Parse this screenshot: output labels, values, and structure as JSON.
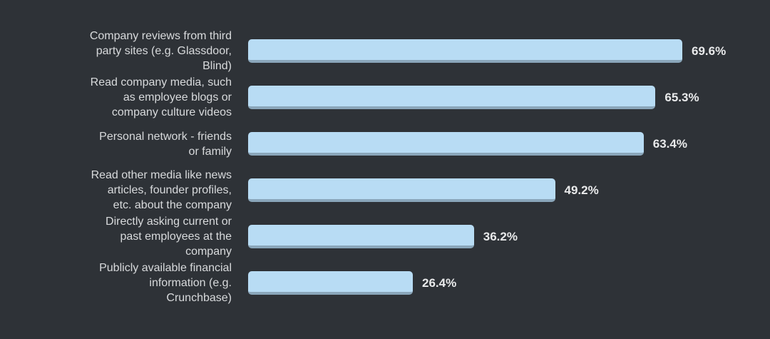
{
  "theme": {
    "background": "#2e3237",
    "bar_color": "#b8dcf4",
    "bar_edge_color": "#8aa6ba",
    "label_color": "#d8dadc",
    "value_color": "#e9eaeb"
  },
  "chart_data": {
    "type": "bar",
    "orientation": "horizontal",
    "title": "",
    "xlabel": "",
    "ylabel": "",
    "xlim": [
      0,
      80
    ],
    "grid": false,
    "legend": false,
    "categories": [
      "Company reviews from third\nparty sites (e.g. Glassdoor,\nBlind)",
      "Read company media, such\nas employee blogs or\ncompany culture videos",
      "Personal network - friends\nor family",
      "Read other media like news\narticles, founder profiles,\netc. about the company",
      "Directly asking current or\npast employees at the\ncompany",
      "Publicly available financial\ninformation (e.g.\nCrunchbase)"
    ],
    "values": [
      69.6,
      65.3,
      63.4,
      49.2,
      36.2,
      26.4
    ],
    "value_labels": [
      "69.6%",
      "65.3%",
      "63.4%",
      "49.2%",
      "36.2%",
      "26.4%"
    ]
  }
}
